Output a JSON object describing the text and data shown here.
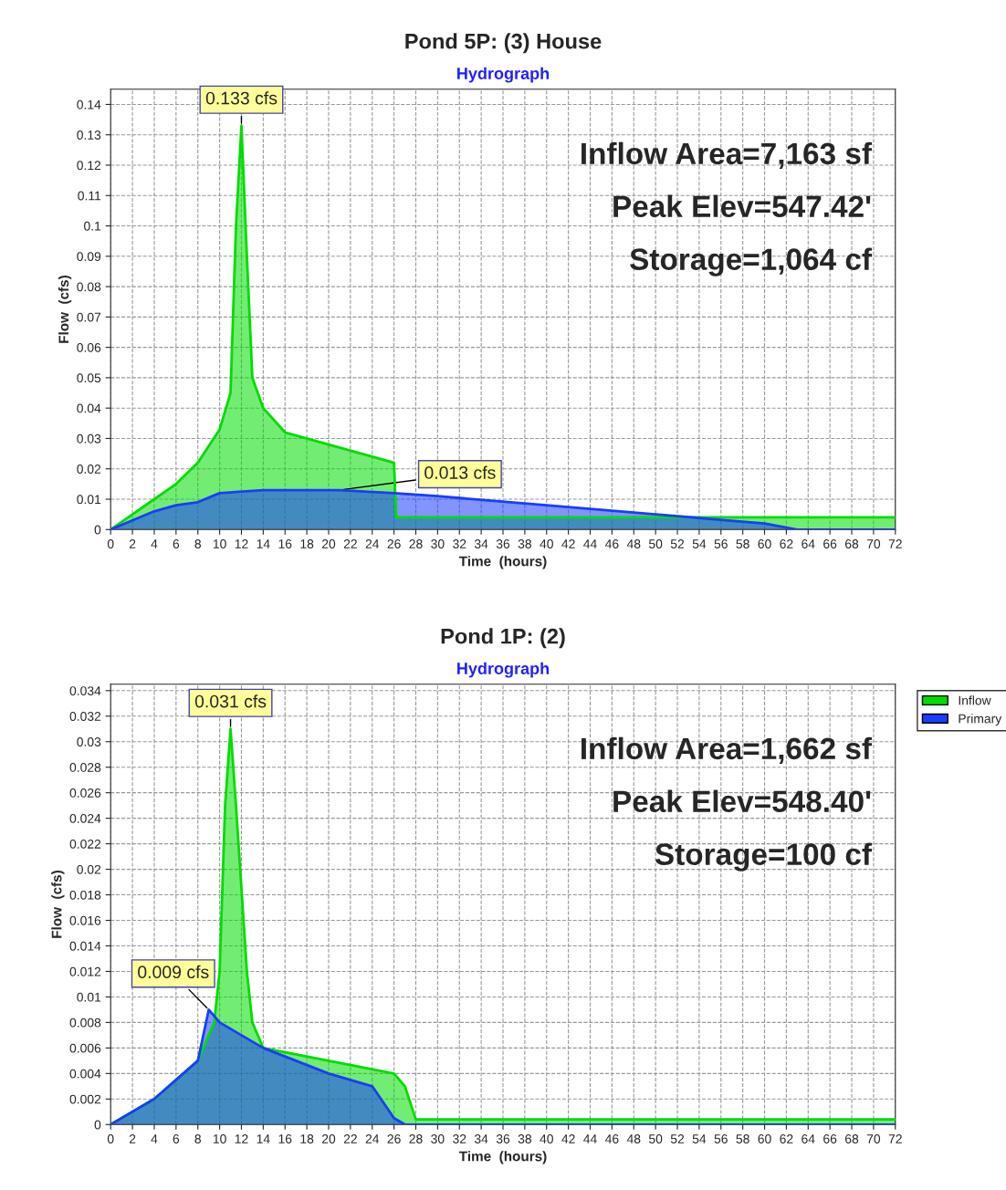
{
  "chart_data": [
    {
      "type": "area",
      "title": "Pond 5P: (3) House",
      "subtitle": "Hydrograph",
      "xlabel": "Time  (hours)",
      "ylabel": "Flow  (cfs)",
      "xlim": [
        0,
        72
      ],
      "xticks": [
        0,
        2,
        4,
        6,
        8,
        10,
        12,
        14,
        16,
        18,
        20,
        22,
        24,
        26,
        28,
        30,
        32,
        34,
        36,
        38,
        40,
        42,
        44,
        46,
        48,
        50,
        52,
        54,
        56,
        58,
        60,
        62,
        64,
        66,
        68,
        70,
        72
      ],
      "ylim": [
        0,
        0.145
      ],
      "yticks": [
        0,
        0.01,
        0.02,
        0.03,
        0.04,
        0.05,
        0.06,
        0.07,
        0.08,
        0.09,
        0.1,
        0.11,
        0.12,
        0.13,
        0.14
      ],
      "grid": true,
      "legend": false,
      "series": [
        {
          "color": "#00dd00",
          "x": [
            0,
            2,
            4,
            6,
            8,
            10,
            11,
            11.5,
            12,
            12.5,
            13,
            14,
            16,
            20,
            24,
            26,
            26.2,
            72
          ],
          "values": [
            0,
            0.005,
            0.01,
            0.015,
            0.022,
            0.033,
            0.045,
            0.1,
            0.133,
            0.09,
            0.05,
            0.04,
            0.032,
            0.028,
            0.024,
            0.022,
            0.004,
            0.004
          ]
        },
        {
          "color": "#1a3cff",
          "x": [
            0,
            2,
            4,
            6,
            8,
            10,
            14,
            21,
            26,
            30,
            40,
            50,
            60,
            63,
            72
          ],
          "values": [
            0,
            0.003,
            0.006,
            0.008,
            0.009,
            0.012,
            0.013,
            0.013,
            0.012,
            0.011,
            0.008,
            0.005,
            0.002,
            0,
            0
          ]
        }
      ],
      "annotations": [
        {
          "text": "0.133 cfs",
          "x": 12,
          "y": 0.133
        },
        {
          "text": "0.013 cfs",
          "x": 21,
          "y": 0.013
        },
        "Inflow Area=7,163 sf",
        "Peak Elev=547.42'",
        "Storage=1,064 cf"
      ]
    },
    {
      "type": "area",
      "title": "Pond 1P: (2)",
      "subtitle": "Hydrograph",
      "xlabel": "Time  (hours)",
      "ylabel": "Flow  (cfs)",
      "xlim": [
        0,
        72
      ],
      "xticks": [
        0,
        2,
        4,
        6,
        8,
        10,
        12,
        14,
        16,
        18,
        20,
        22,
        24,
        26,
        28,
        30,
        32,
        34,
        36,
        38,
        40,
        42,
        44,
        46,
        48,
        50,
        52,
        54,
        56,
        58,
        60,
        62,
        64,
        66,
        68,
        70,
        72
      ],
      "ylim": [
        0,
        0.0345
      ],
      "yticks": [
        0,
        0.002,
        0.004,
        0.006,
        0.008,
        0.01,
        0.012,
        0.014,
        0.016,
        0.018,
        0.02,
        0.022,
        0.024,
        0.026,
        0.028,
        0.03,
        0.032,
        0.034
      ],
      "grid": true,
      "legend": "top right",
      "series": [
        {
          "name": "Inflow",
          "color": "#00dd00",
          "x": [
            0,
            2,
            4,
            6,
            8,
            9.5,
            10,
            10.5,
            11,
            11.5,
            12.5,
            13,
            14,
            20,
            26,
            27,
            28,
            72
          ],
          "values": [
            0,
            0.001,
            0.002,
            0.0035,
            0.005,
            0.008,
            0.012,
            0.025,
            0.031,
            0.025,
            0.012,
            0.008,
            0.006,
            0.005,
            0.004,
            0.003,
            0.0004,
            0.0004
          ]
        },
        {
          "name": "Primary",
          "color": "#1a3cff",
          "x": [
            0,
            2,
            4,
            6,
            8,
            9,
            10,
            14,
            20,
            24,
            26,
            27,
            72
          ],
          "values": [
            0,
            0.001,
            0.002,
            0.0035,
            0.005,
            0.009,
            0.008,
            0.006,
            0.004,
            0.003,
            0.0005,
            0,
            0
          ]
        }
      ],
      "annotations": [
        {
          "text": "0.031 cfs",
          "x": 11,
          "y": 0.031
        },
        {
          "text": "0.009 cfs",
          "x": 9,
          "y": 0.009
        },
        "Inflow Area=1,662 sf",
        "Peak Elev=548.40'",
        "Storage=100 cf"
      ]
    }
  ]
}
